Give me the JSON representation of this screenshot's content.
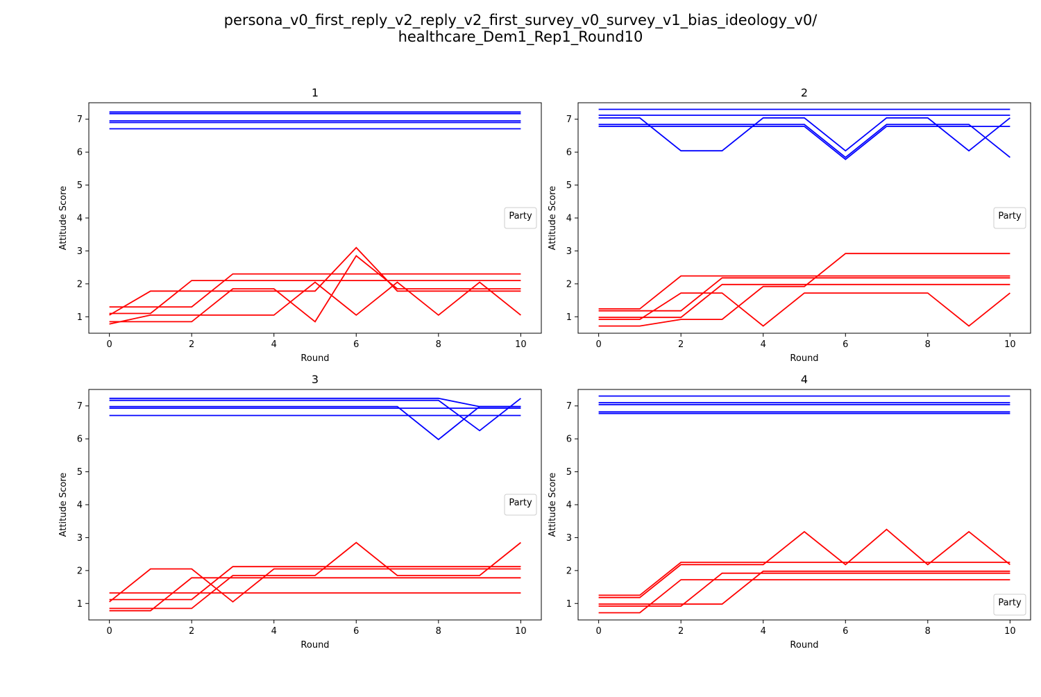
{
  "figure": {
    "title_line1": "persona_v0_first_reply_v2_reply_v2_first_survey_v0_survey_v1_bias_ideology_v0/",
    "title_line2": "healthcare_Dem1_Rep1_Round10"
  },
  "colors": {
    "dem": "#0000ff",
    "rep": "#ff0000"
  },
  "chart_data": [
    {
      "type": "line",
      "title": "1",
      "xlabel": "Round",
      "ylabel": "Attitude Score",
      "xlim": [
        -0.5,
        10.5
      ],
      "ylim": [
        0.5,
        7.5
      ],
      "xticks": [
        0,
        2,
        4,
        6,
        8,
        10
      ],
      "yticks": [
        1,
        2,
        3,
        4,
        5,
        6,
        7
      ],
      "x": [
        0,
        1,
        2,
        3,
        4,
        5,
        6,
        7,
        8,
        9,
        10
      ],
      "legend": {
        "title": "Party",
        "placement": "center-right"
      },
      "series": [
        {
          "color": "#0000ff",
          "values": [
            7.22,
            7.22,
            7.22,
            7.22,
            7.22,
            7.22,
            7.22,
            7.22,
            7.22,
            7.22,
            7.22
          ]
        },
        {
          "color": "#0000ff",
          "values": [
            7.17,
            7.17,
            7.17,
            7.17,
            7.17,
            7.17,
            7.17,
            7.17,
            7.17,
            7.17,
            7.17
          ]
        },
        {
          "color": "#0000ff",
          "values": [
            6.95,
            6.95,
            6.95,
            6.95,
            6.95,
            6.95,
            6.95,
            6.95,
            6.95,
            6.95,
            6.95
          ]
        },
        {
          "color": "#0000ff",
          "values": [
            6.9,
            6.9,
            6.9,
            6.9,
            6.9,
            6.9,
            6.9,
            6.9,
            6.9,
            6.9,
            6.9
          ]
        },
        {
          "color": "#0000ff",
          "values": [
            6.71,
            6.71,
            6.71,
            6.71,
            6.71,
            6.71,
            6.71,
            6.71,
            6.71,
            6.71,
            6.71
          ]
        },
        {
          "color": "#ff0000",
          "values": [
            1.3,
            1.3,
            1.3,
            2.3,
            2.3,
            2.3,
            2.3,
            2.3,
            2.3,
            2.3,
            2.3
          ]
        },
        {
          "color": "#ff0000",
          "values": [
            1.1,
            1.1,
            2.1,
            2.1,
            2.1,
            2.1,
            2.1,
            2.1,
            2.1,
            2.1,
            2.1
          ]
        },
        {
          "color": "#ff0000",
          "values": [
            1.05,
            1.78,
            1.78,
            1.78,
            1.78,
            1.78,
            3.1,
            1.78,
            1.78,
            1.78,
            1.78
          ]
        },
        {
          "color": "#ff0000",
          "values": [
            0.85,
            0.85,
            0.85,
            1.85,
            1.85,
            0.85,
            2.85,
            1.85,
            1.85,
            1.85,
            1.85
          ]
        },
        {
          "color": "#ff0000",
          "values": [
            0.78,
            1.05,
            1.05,
            1.05,
            1.05,
            2.05,
            1.05,
            2.05,
            1.05,
            2.05,
            1.05
          ]
        }
      ]
    },
    {
      "type": "line",
      "title": "2",
      "xlabel": "Round",
      "ylabel": "Attitude Score",
      "xlim": [
        -0.5,
        10.5
      ],
      "ylim": [
        0.5,
        7.5
      ],
      "xticks": [
        0,
        2,
        4,
        6,
        8,
        10
      ],
      "yticks": [
        1,
        2,
        3,
        4,
        5,
        6,
        7
      ],
      "x": [
        0,
        1,
        2,
        3,
        4,
        5,
        6,
        7,
        8,
        9,
        10
      ],
      "legend": {
        "title": "Party",
        "placement": "center-right"
      },
      "series": [
        {
          "color": "#0000ff",
          "values": [
            7.3,
            7.3,
            7.3,
            7.3,
            7.3,
            7.3,
            7.3,
            7.3,
            7.3,
            7.3,
            7.3
          ]
        },
        {
          "color": "#0000ff",
          "values": [
            7.12,
            7.12,
            7.12,
            7.12,
            7.12,
            7.12,
            7.12,
            7.12,
            7.12,
            7.12,
            7.12
          ]
        },
        {
          "color": "#0000ff",
          "values": [
            7.04,
            7.04,
            6.04,
            6.04,
            7.04,
            7.04,
            6.04,
            7.04,
            7.04,
            6.04,
            7.04
          ]
        },
        {
          "color": "#0000ff",
          "values": [
            6.84,
            6.84,
            6.84,
            6.84,
            6.84,
            6.84,
            5.84,
            6.84,
            6.84,
            6.84,
            5.84
          ]
        },
        {
          "color": "#0000ff",
          "values": [
            6.78,
            6.78,
            6.78,
            6.78,
            6.78,
            6.78,
            5.78,
            6.78,
            6.78,
            6.78,
            6.78
          ]
        },
        {
          "color": "#ff0000",
          "values": [
            1.24,
            1.24,
            2.24,
            2.24,
            2.24,
            2.24,
            2.24,
            2.24,
            2.24,
            2.24,
            2.24
          ]
        },
        {
          "color": "#ff0000",
          "values": [
            1.18,
            1.18,
            1.18,
            2.18,
            2.18,
            2.18,
            2.18,
            2.18,
            2.18,
            2.18,
            2.18
          ]
        },
        {
          "color": "#ff0000",
          "values": [
            0.98,
            0.98,
            0.98,
            1.98,
            1.98,
            1.98,
            1.98,
            1.98,
            1.98,
            1.98,
            1.98
          ]
        },
        {
          "color": "#ff0000",
          "values": [
            0.92,
            0.92,
            1.72,
            1.72,
            0.72,
            1.72,
            1.72,
            1.72,
            1.72,
            0.72,
            1.72
          ]
        },
        {
          "color": "#ff0000",
          "values": [
            0.72,
            0.72,
            0.92,
            0.92,
            1.92,
            1.92,
            2.92,
            2.92,
            2.92,
            2.92,
            2.92
          ]
        }
      ]
    },
    {
      "type": "line",
      "title": "3",
      "xlabel": "Round",
      "ylabel": "Attitude Score",
      "xlim": [
        -0.5,
        10.5
      ],
      "ylim": [
        0.5,
        7.5
      ],
      "xticks": [
        0,
        2,
        4,
        6,
        8,
        10
      ],
      "yticks": [
        1,
        2,
        3,
        4,
        5,
        6,
        7
      ],
      "x": [
        0,
        1,
        2,
        3,
        4,
        5,
        6,
        7,
        8,
        9,
        10
      ],
      "legend": {
        "title": "Party",
        "placement": "center-right"
      },
      "series": [
        {
          "color": "#0000ff",
          "values": [
            7.23,
            7.23,
            7.23,
            7.23,
            7.23,
            7.23,
            7.23,
            7.23,
            7.23,
            6.98,
            6.98
          ]
        },
        {
          "color": "#0000ff",
          "values": [
            7.17,
            7.17,
            7.17,
            7.17,
            7.17,
            7.17,
            7.17,
            7.17,
            7.17,
            6.25,
            7.23
          ]
        },
        {
          "color": "#0000ff",
          "values": [
            6.98,
            6.98,
            6.98,
            6.98,
            6.98,
            6.98,
            6.98,
            6.98,
            5.98,
            6.98,
            6.98
          ]
        },
        {
          "color": "#0000ff",
          "values": [
            6.93,
            6.93,
            6.93,
            6.93,
            6.93,
            6.93,
            6.93,
            6.93,
            6.93,
            6.93,
            6.93
          ]
        },
        {
          "color": "#0000ff",
          "values": [
            6.71,
            6.71,
            6.71,
            6.71,
            6.71,
            6.71,
            6.71,
            6.71,
            6.71,
            6.71,
            6.71
          ]
        },
        {
          "color": "#ff0000",
          "values": [
            1.32,
            1.32,
            1.32,
            1.32,
            1.32,
            1.32,
            1.32,
            1.32,
            1.32,
            1.32,
            1.32
          ]
        },
        {
          "color": "#ff0000",
          "values": [
            1.12,
            1.12,
            1.12,
            2.12,
            2.12,
            2.12,
            2.12,
            2.12,
            2.12,
            2.12,
            2.12
          ]
        },
        {
          "color": "#ff0000",
          "values": [
            1.05,
            2.05,
            2.05,
            1.05,
            2.05,
            2.05,
            2.05,
            2.05,
            2.05,
            2.05,
            2.05
          ]
        },
        {
          "color": "#ff0000",
          "values": [
            0.85,
            0.85,
            0.85,
            1.85,
            1.85,
            1.85,
            2.85,
            1.85,
            1.85,
            1.85,
            2.85
          ]
        },
        {
          "color": "#ff0000",
          "values": [
            0.78,
            0.78,
            1.78,
            1.78,
            1.78,
            1.78,
            1.78,
            1.78,
            1.78,
            1.78,
            1.78
          ]
        }
      ]
    },
    {
      "type": "line",
      "title": "4",
      "xlabel": "Round",
      "ylabel": "Attitude Score",
      "xlim": [
        -0.5,
        10.5
      ],
      "ylim": [
        0.5,
        7.5
      ],
      "xticks": [
        0,
        2,
        4,
        6,
        8,
        10
      ],
      "yticks": [
        1,
        2,
        3,
        4,
        5,
        6,
        7
      ],
      "x": [
        0,
        1,
        2,
        3,
        4,
        5,
        6,
        7,
        8,
        9,
        10
      ],
      "legend": {
        "title": "Party",
        "placement": "lower-right"
      },
      "series": [
        {
          "color": "#0000ff",
          "values": [
            7.3,
            7.3,
            7.3,
            7.3,
            7.3,
            7.3,
            7.3,
            7.3,
            7.3,
            7.3,
            7.3
          ]
        },
        {
          "color": "#0000ff",
          "values": [
            7.1,
            7.1,
            7.1,
            7.1,
            7.1,
            7.1,
            7.1,
            7.1,
            7.1,
            7.1,
            7.1
          ]
        },
        {
          "color": "#0000ff",
          "values": [
            7.04,
            7.04,
            7.04,
            7.04,
            7.04,
            7.04,
            7.04,
            7.04,
            7.04,
            7.04,
            7.04
          ]
        },
        {
          "color": "#0000ff",
          "values": [
            6.82,
            6.82,
            6.82,
            6.82,
            6.82,
            6.82,
            6.82,
            6.82,
            6.82,
            6.82,
            6.82
          ]
        },
        {
          "color": "#0000ff",
          "values": [
            6.77,
            6.77,
            6.77,
            6.77,
            6.77,
            6.77,
            6.77,
            6.77,
            6.77,
            6.77,
            6.77
          ]
        },
        {
          "color": "#ff0000",
          "values": [
            1.25,
            1.25,
            2.25,
            2.25,
            2.25,
            2.25,
            2.25,
            2.25,
            2.25,
            2.25,
            2.25
          ]
        },
        {
          "color": "#ff0000",
          "values": [
            1.18,
            1.18,
            2.18,
            2.18,
            2.18,
            3.18,
            2.18,
            3.25,
            2.18,
            3.18,
            2.18
          ]
        },
        {
          "color": "#ff0000",
          "values": [
            0.98,
            0.98,
            0.98,
            0.98,
            1.98,
            1.98,
            1.98,
            1.98,
            1.98,
            1.98,
            1.98
          ]
        },
        {
          "color": "#ff0000",
          "values": [
            0.92,
            0.92,
            0.92,
            1.92,
            1.92,
            1.92,
            1.92,
            1.92,
            1.92,
            1.92,
            1.92
          ]
        },
        {
          "color": "#ff0000",
          "values": [
            0.72,
            0.72,
            1.72,
            1.72,
            1.72,
            1.72,
            1.72,
            1.72,
            1.72,
            1.72,
            1.72
          ]
        }
      ]
    }
  ]
}
